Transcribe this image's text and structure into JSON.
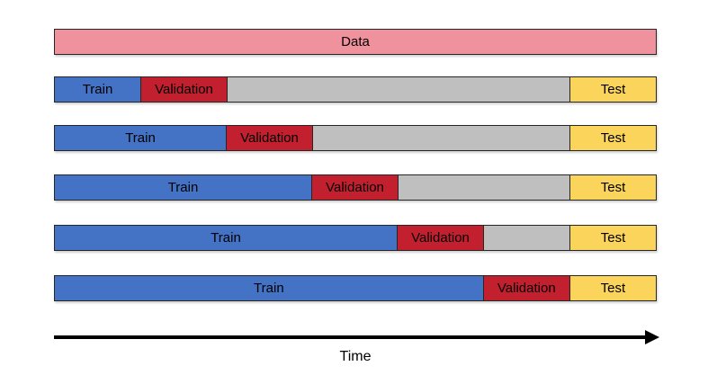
{
  "diagram_type": "time-series train/validation/test split (walk-forward cross-validation)",
  "colors": {
    "data": "#F0919E",
    "train": "#4472C4",
    "validation": "#C2202E",
    "test": "#FBD45C",
    "unused": "#BFBFBF",
    "border": "#262626",
    "arrow": "#000000"
  },
  "total_units": 7,
  "rows": [
    {
      "name": "data-bar",
      "segments": [
        {
          "type": "data",
          "label": "Data",
          "units": 7
        }
      ]
    },
    {
      "name": "split-row-1",
      "segments": [
        {
          "type": "train",
          "label": "Train",
          "units": 1
        },
        {
          "type": "validation",
          "label": "Validation",
          "units": 1
        },
        {
          "type": "unused",
          "label": "",
          "units": 4
        },
        {
          "type": "test",
          "label": "Test",
          "units": 1
        }
      ]
    },
    {
      "name": "split-row-2",
      "segments": [
        {
          "type": "train",
          "label": "Train",
          "units": 2
        },
        {
          "type": "validation",
          "label": "Validation",
          "units": 1
        },
        {
          "type": "unused",
          "label": "",
          "units": 3
        },
        {
          "type": "test",
          "label": "Test",
          "units": 1
        }
      ]
    },
    {
      "name": "split-row-3",
      "segments": [
        {
          "type": "train",
          "label": "Train",
          "units": 3
        },
        {
          "type": "validation",
          "label": "Validation",
          "units": 1
        },
        {
          "type": "unused",
          "label": "",
          "units": 2
        },
        {
          "type": "test",
          "label": "Test",
          "units": 1
        }
      ]
    },
    {
      "name": "split-row-4",
      "segments": [
        {
          "type": "train",
          "label": "Train",
          "units": 4
        },
        {
          "type": "validation",
          "label": "Validation",
          "units": 1
        },
        {
          "type": "unused",
          "label": "",
          "units": 1
        },
        {
          "type": "test",
          "label": "Test",
          "units": 1
        }
      ]
    },
    {
      "name": "split-row-5",
      "segments": [
        {
          "type": "train",
          "label": "Train",
          "units": 5
        },
        {
          "type": "validation",
          "label": "Validation",
          "units": 1
        },
        {
          "type": "test",
          "label": "Test",
          "units": 1
        }
      ]
    }
  ],
  "time_axis": {
    "label": "Time"
  }
}
